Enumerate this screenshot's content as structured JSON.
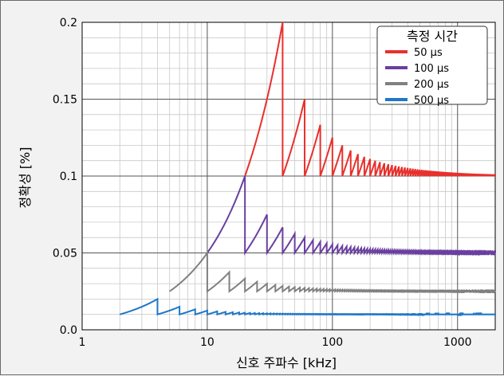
{
  "chart_data": {
    "type": "line",
    "xlabel": "신호 주파수 [kHz]",
    "ylabel": "정확성 [%]",
    "xscale": "log",
    "xlim": [
      1,
      2000
    ],
    "ylim": [
      0,
      0.2
    ],
    "grid": true,
    "x_ticks": [
      1,
      10,
      100,
      1000
    ],
    "x_tick_labels": [
      "1",
      "10",
      "100",
      "1000"
    ],
    "y_ticks": [
      0,
      0.05,
      0.1,
      0.15,
      0.2
    ],
    "y_tick_labels": [
      "0.0",
      "0.05",
      "0.1",
      "0.15",
      "0.2"
    ],
    "legend": {
      "title": "측정 시간",
      "position": "top-right"
    },
    "series": [
      {
        "name": "50 µs",
        "color": "#e8302c",
        "measurement_time_us": 50,
        "x_start_khz": 20,
        "y_start": 0.1,
        "points": [
          [
            20,
            0.1
          ],
          [
            30,
            0.133
          ],
          [
            40,
            0.2
          ],
          [
            60,
            0.15
          ],
          [
            80,
            0.133
          ],
          [
            100,
            0.125
          ],
          [
            200,
            0.111
          ],
          [
            500,
            0.104
          ],
          [
            1000,
            0.102
          ],
          [
            2000,
            0.101
          ]
        ]
      },
      {
        "name": "100 µs",
        "color": "#6a3fa0",
        "measurement_time_us": 100,
        "x_start_khz": 10,
        "y_start": 0.05,
        "points": [
          [
            10,
            0.05
          ],
          [
            15,
            0.067
          ],
          [
            20,
            0.1
          ],
          [
            30,
            0.075
          ],
          [
            40,
            0.067
          ],
          [
            100,
            0.056
          ],
          [
            500,
            0.051
          ],
          [
            2000,
            0.05
          ]
        ]
      },
      {
        "name": "200 µs",
        "color": "#808080",
        "measurement_time_us": 200,
        "x_start_khz": 5,
        "y_start": 0.025,
        "points": [
          [
            5,
            0.025
          ],
          [
            10,
            0.05
          ],
          [
            15,
            0.0375
          ],
          [
            20,
            0.033
          ],
          [
            100,
            0.027
          ],
          [
            2000,
            0.025
          ]
        ]
      },
      {
        "name": "500 µs",
        "color": "#1f77c8",
        "measurement_time_us": 500,
        "x_start_khz": 2,
        "y_start": 0.01,
        "points": [
          [
            2,
            0.01
          ],
          [
            4,
            0.02
          ],
          [
            6,
            0.015
          ],
          [
            10,
            0.013
          ],
          [
            100,
            0.0105
          ],
          [
            2000,
            0.01
          ]
        ]
      }
    ]
  }
}
